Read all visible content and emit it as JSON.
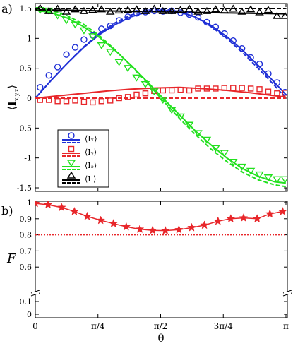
{
  "figure": {
    "panel_a_label": "a)",
    "panel_b_label": "b)",
    "x_axis_label": "θ",
    "legend_labels": [
      "⟨Iₓ⟩",
      "⟨Iᵧ⟩",
      "⟨Iₔ⟩",
      "⟨I ⟩"
    ],
    "colors": {
      "x": "#1f2fd6",
      "y": "#e8262a",
      "z": "#22e01e",
      "total": "#000000",
      "fidelity": "#e8262a"
    }
  },
  "chart_data": [
    {
      "id": "panel-a",
      "type": "line",
      "title": "",
      "xlabel": "θ",
      "ylabel": "⟨I x,y,z⟩",
      "xlim": [
        0,
        3.1416
      ],
      "ylim": [
        -1.5,
        1.5
      ],
      "x_ticks": [
        {
          "value": 0,
          "label": "0"
        },
        {
          "value": 0.7854,
          "label": "π/4"
        },
        {
          "value": 1.5708,
          "label": "π/2"
        },
        {
          "value": 2.3562,
          "label": "3π/4"
        },
        {
          "value": 3.1416,
          "label": "π"
        }
      ],
      "y_ticks": [
        {
          "value": 1.5,
          "label": "1.5"
        },
        {
          "value": 1,
          "label": "1"
        },
        {
          "value": 0.5,
          "label": "0.5"
        },
        {
          "value": 0,
          "label": "0"
        },
        {
          "value": -0.5,
          "label": "-0.5"
        },
        {
          "value": -1,
          "label": "-1"
        },
        {
          "value": -1.5,
          "label": "-1.5"
        }
      ],
      "legend": {
        "placement": "lower-left",
        "entries": [
          "⟨Ix⟩",
          "⟨Iy⟩",
          "⟨Iz⟩",
          "⟨I ⟩"
        ]
      },
      "series": [
        {
          "key": "x",
          "marker": "circle",
          "solid": {
            "x": [
              0,
              0.2,
              0.4,
              0.6,
              0.8,
              1.0,
              1.2,
              1.4,
              1.6,
              1.8,
              2.0,
              2.2,
              2.4,
              2.6,
              2.8,
              3.0,
              3.14
            ],
            "y": [
              0,
              0.3,
              0.58,
              0.84,
              1.06,
              1.23,
              1.36,
              1.44,
              1.47,
              1.44,
              1.36,
              1.22,
              1.03,
              0.8,
              0.54,
              0.26,
              0.06
            ]
          },
          "dashed": {
            "x": [
              0,
              0.2,
              0.4,
              0.6,
              0.8,
              1.0,
              1.2,
              1.4,
              1.6,
              1.8,
              2.0,
              2.2,
              2.4,
              2.6,
              2.8,
              3.0,
              3.14
            ],
            "y": [
              0,
              0.3,
              0.58,
              0.85,
              1.08,
              1.26,
              1.39,
              1.47,
              1.49,
              1.45,
              1.36,
              1.2,
              1.0,
              0.76,
              0.49,
              0.21,
              0.0
            ]
          },
          "points": {
            "x": [
              0.06,
              0.17,
              0.28,
              0.39,
              0.5,
              0.61,
              0.72,
              0.83,
              0.94,
              1.05,
              1.16,
              1.27,
              1.38,
              1.49,
              1.6,
              1.71,
              1.82,
              1.93,
              2.04,
              2.15,
              2.26,
              2.37,
              2.48,
              2.59,
              2.7,
              2.81,
              2.92,
              3.03,
              3.13
            ],
            "y": [
              0.18,
              0.38,
              0.52,
              0.73,
              0.85,
              0.98,
              1.05,
              1.16,
              1.21,
              1.3,
              1.36,
              1.42,
              1.44,
              1.46,
              1.45,
              1.46,
              1.43,
              1.4,
              1.35,
              1.27,
              1.19,
              1.08,
              0.96,
              0.83,
              0.68,
              0.57,
              0.41,
              0.26,
              0.1
            ]
          }
        },
        {
          "key": "y",
          "marker": "square",
          "solid": {
            "x": [
              0,
              0.3,
              0.6,
              0.9,
              1.2,
              1.5,
              1.8,
              2.1,
              2.4,
              2.7,
              3.0,
              3.14
            ],
            "y": [
              0,
              0.04,
              0.08,
              0.12,
              0.15,
              0.17,
              0.18,
              0.16,
              0.13,
              0.09,
              0.04,
              0.02
            ]
          },
          "dashed": {
            "x": [
              0,
              3.14
            ],
            "y": [
              0,
              0
            ]
          },
          "points": {
            "x": [
              0.06,
              0.17,
              0.28,
              0.39,
              0.5,
              0.61,
              0.72,
              0.83,
              0.94,
              1.05,
              1.16,
              1.27,
              1.38,
              1.49,
              1.6,
              1.71,
              1.82,
              1.93,
              2.04,
              2.15,
              2.26,
              2.37,
              2.48,
              2.59,
              2.7,
              2.81,
              2.92,
              3.03,
              3.13
            ],
            "y": [
              -0.03,
              -0.03,
              -0.05,
              -0.05,
              -0.04,
              -0.06,
              -0.07,
              -0.05,
              -0.04,
              0.0,
              0.02,
              0.06,
              0.08,
              0.12,
              0.13,
              0.13,
              0.14,
              0.13,
              0.16,
              0.16,
              0.16,
              0.17,
              0.17,
              0.17,
              0.16,
              0.15,
              0.11,
              0.08,
              0.09
            ]
          }
        },
        {
          "key": "z",
          "marker": "triangle-down",
          "solid": {
            "x": [
              0,
              0.2,
              0.4,
              0.6,
              0.8,
              1.0,
              1.2,
              1.4,
              1.6,
              1.8,
              2.0,
              2.2,
              2.4,
              2.6,
              2.8,
              3.0,
              3.14
            ],
            "y": [
              1.47,
              1.43,
              1.34,
              1.2,
              1.02,
              0.8,
              0.55,
              0.28,
              0.0,
              -0.27,
              -0.54,
              -0.78,
              -1.0,
              -1.18,
              -1.31,
              -1.4,
              -1.42
            ]
          },
          "dashed": {
            "x": [
              0,
              0.2,
              0.4,
              0.6,
              0.8,
              1.0,
              1.2,
              1.4,
              1.6,
              1.8,
              2.0,
              2.2,
              2.4,
              2.6,
              2.8,
              3.0,
              3.14
            ],
            "y": [
              1.5,
              1.47,
              1.38,
              1.24,
              1.05,
              0.81,
              0.54,
              0.26,
              -0.04,
              -0.33,
              -0.6,
              -0.85,
              -1.06,
              -1.24,
              -1.37,
              -1.45,
              -1.48
            ]
          },
          "points": {
            "x": [
              0.06,
              0.17,
              0.28,
              0.39,
              0.5,
              0.61,
              0.72,
              0.83,
              0.94,
              1.05,
              1.16,
              1.27,
              1.38,
              1.49,
              1.6,
              1.71,
              1.82,
              1.93,
              2.04,
              2.15,
              2.26,
              2.37,
              2.48,
              2.59,
              2.7,
              2.81,
              2.92,
              3.03,
              3.13
            ],
            "y": [
              1.48,
              1.47,
              1.39,
              1.31,
              1.24,
              1.14,
              1.04,
              0.89,
              0.78,
              0.61,
              0.51,
              0.35,
              0.24,
              0.12,
              -0.02,
              -0.19,
              -0.3,
              -0.44,
              -0.58,
              -0.69,
              -0.83,
              -0.91,
              -1.06,
              -1.14,
              -1.21,
              -1.27,
              -1.32,
              -1.35,
              -1.35
            ]
          }
        },
        {
          "key": "total",
          "marker": "triangle-up",
          "solid": {
            "x": [
              0,
              3.14
            ],
            "y": [
              1.48,
              1.41
            ]
          },
          "dashed": {
            "x": [
              0,
              3.14
            ],
            "y": [
              1.5,
              1.5
            ]
          },
          "points": {
            "x": [
              0.06,
              0.17,
              0.28,
              0.39,
              0.5,
              0.61,
              0.72,
              0.83,
              0.94,
              1.05,
              1.16,
              1.27,
              1.38,
              1.49,
              1.6,
              1.71,
              1.82,
              1.93,
              2.04,
              2.15,
              2.26,
              2.37,
              2.48,
              2.59,
              2.7,
              2.81,
              2.92,
              3.03,
              3.13
            ],
            "y": [
              1.5,
              1.45,
              1.49,
              1.44,
              1.48,
              1.45,
              1.47,
              1.48,
              1.44,
              1.46,
              1.47,
              1.48,
              1.45,
              1.49,
              1.45,
              1.45,
              1.47,
              1.49,
              1.44,
              1.45,
              1.48,
              1.46,
              1.49,
              1.44,
              1.48,
              1.43,
              1.47,
              1.37,
              1.37
            ]
          }
        }
      ]
    },
    {
      "id": "panel-b",
      "type": "line",
      "title": "",
      "xlabel": "θ",
      "ylabel": "F",
      "xlim": [
        0,
        3.1416
      ],
      "y_ticks": [
        {
          "value": 1,
          "label": "1"
        },
        {
          "value": 0.9,
          "label": "0.9"
        },
        {
          "value": 0.8,
          "label": "0.8"
        },
        {
          "value": 0.7,
          "label": "0.7"
        },
        {
          "value": 0.6,
          "label": "0.6"
        },
        {
          "value": 0.1,
          "label": "0.1"
        },
        {
          "value": 0,
          "label": "0"
        }
      ],
      "axis_break": true,
      "reference_line": 0.8,
      "series": [
        {
          "name": "",
          "marker": "star",
          "x": [
            0,
            0.16,
            0.33,
            0.49,
            0.65,
            0.82,
            0.98,
            1.14,
            1.31,
            1.47,
            1.63,
            1.8,
            1.96,
            2.12,
            2.29,
            2.45,
            2.61,
            2.78,
            2.94,
            3.1
          ],
          "y": [
            0.995,
            0.987,
            0.97,
            0.945,
            0.915,
            0.89,
            0.87,
            0.85,
            0.835,
            0.828,
            0.826,
            0.832,
            0.845,
            0.86,
            0.885,
            0.9,
            0.905,
            0.9,
            0.93,
            0.945
          ]
        }
      ]
    }
  ]
}
